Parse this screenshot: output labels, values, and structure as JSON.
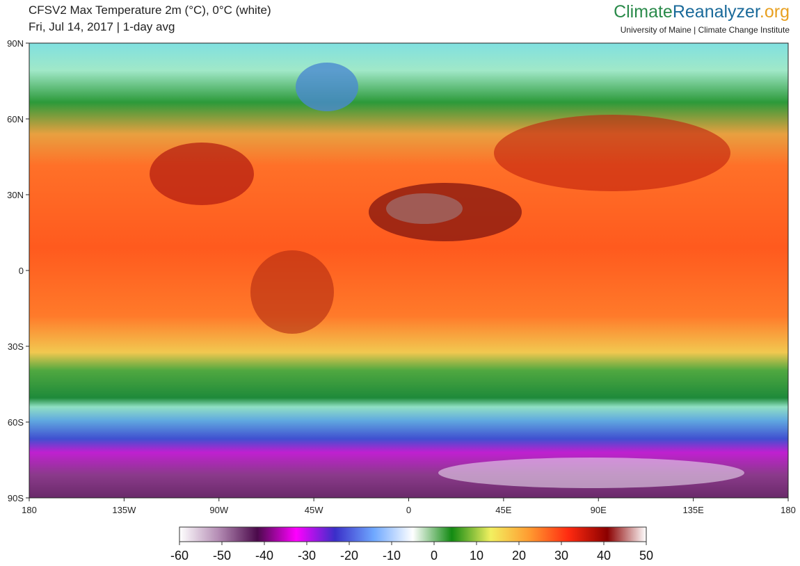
{
  "header": {
    "title": "CFSV2 Max Temperature 2m (°C), 0°C (white)",
    "subtitle": "Fri, Jul 14, 2017 | 1-day avg",
    "brand": [
      "Climate",
      "Reanalyzer",
      ".org"
    ],
    "affiliation": "University of Maine | Climate Change Institute"
  },
  "map": {
    "xlim": [
      -180,
      180
    ],
    "ylim": [
      -90,
      90
    ],
    "xticks": [
      {
        "value": -180,
        "label": "180"
      },
      {
        "value": -135,
        "label": "135W"
      },
      {
        "value": -90,
        "label": "90W"
      },
      {
        "value": -45,
        "label": "45W"
      },
      0,
      {
        "value": 45,
        "label": "45E"
      },
      {
        "value": 90,
        "label": "90E"
      },
      {
        "value": 135,
        "label": "135E"
      },
      {
        "value": 180,
        "label": "180"
      }
    ],
    "yticks": [
      {
        "value": 90,
        "label": "90N"
      },
      {
        "value": 60,
        "label": "60N"
      },
      {
        "value": 30,
        "label": "30N"
      },
      0,
      {
        "value": -30,
        "label": "30S"
      },
      {
        "value": -60,
        "label": "60S"
      },
      {
        "value": -90,
        "label": "90S"
      }
    ]
  },
  "colorbar": {
    "range": [
      -60,
      50
    ],
    "ticks": [
      -60,
      -50,
      -40,
      -30,
      -20,
      -10,
      0,
      10,
      20,
      30,
      40,
      50
    ],
    "colors": [
      "#ffffff",
      "#b48cb4",
      "#4b0a4b",
      "#ff00ff",
      "#3a2fc8",
      "#6fa8ff",
      "#ffffff",
      "#128a12",
      "#f2f060",
      "#ff9a30",
      "#ff2a10",
      "#8b0000",
      "#ffffff"
    ]
  }
}
